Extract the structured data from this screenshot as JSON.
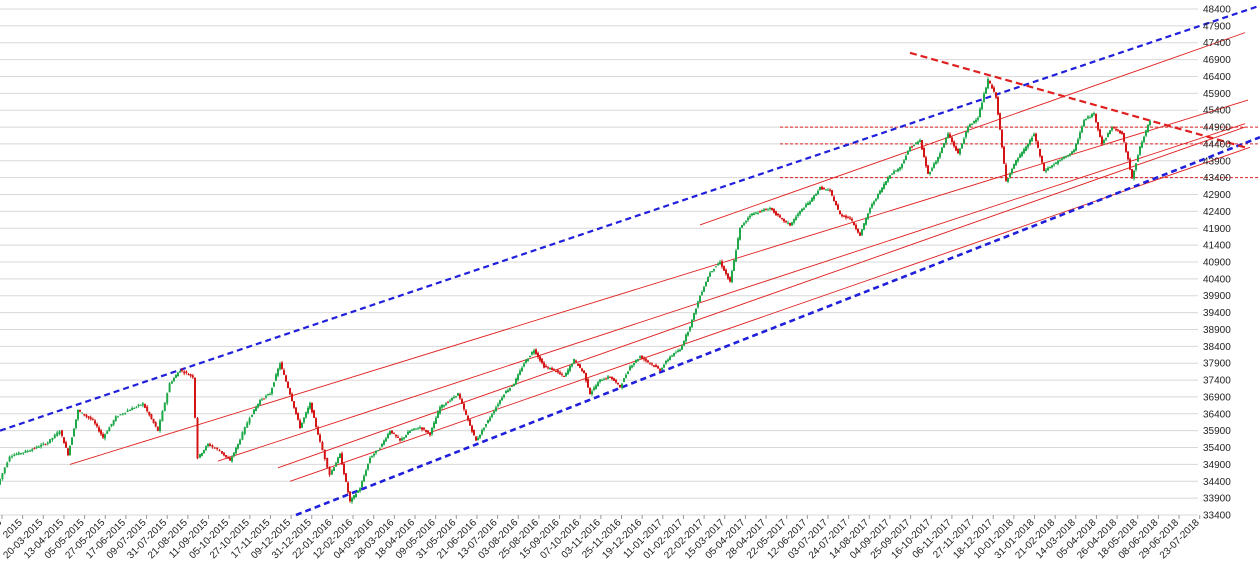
{
  "chart_data": {
    "type": "line",
    "title": "",
    "xlabel": "",
    "ylabel": "",
    "ylim": [
      33400,
      48400
    ],
    "grid": true,
    "y_ticks": [
      33400,
      33900,
      34400,
      34900,
      35400,
      35900,
      36400,
      36900,
      37400,
      37900,
      38400,
      38900,
      39400,
      39900,
      40400,
      40900,
      41400,
      41900,
      42400,
      42900,
      43400,
      43900,
      44400,
      44900,
      45400,
      45900,
      46400,
      46900,
      47400,
      47900,
      48400
    ],
    "x_tick_labels": [
      "2015",
      "2015",
      "20-03-2015",
      "13-04-2015",
      "05-05-2015",
      "27-05-2015",
      "17-06-2015",
      "09-07-2015",
      "31-07-2015",
      "21-08-2015",
      "11-09-2015",
      "05-10-2015",
      "27-10-2015",
      "17-11-2015",
      "09-12-2015",
      "31-12-2015",
      "22-01-2016",
      "12-02-2016",
      "04-03-2016",
      "28-03-2016",
      "18-04-2016",
      "09-05-2016",
      "31-05-2016",
      "21-06-2016",
      "13-07-2016",
      "03-08-2016",
      "25-08-2016",
      "15-09-2016",
      "07-10-2016",
      "03-11-2016",
      "25-11-2016",
      "19-12-2016",
      "11-01-2017",
      "01-02-2017",
      "22-02-2017",
      "15-03-2017",
      "05-04-2017",
      "28-04-2017",
      "22-05-2017",
      "12-06-2017",
      "03-07-2017",
      "24-07-2017",
      "14-08-2017",
      "04-09-2017",
      "25-09-2017",
      "16-10-2017",
      "06-11-2017",
      "27-11-2017",
      "18-12-2017",
      "10-01-2018",
      "31-01-2018",
      "21-02-2018",
      "14-03-2018",
      "05-04-2018",
      "26-04-2018",
      "18-05-2018",
      "08-06-2018",
      "29-06-2018",
      "23-07-2018"
    ],
    "candlestick_close_path": [
      [
        0,
        34300
      ],
      [
        12,
        35150
      ],
      [
        30,
        35300
      ],
      [
        50,
        35550
      ],
      [
        62,
        35900
      ],
      [
        70,
        35200
      ],
      [
        80,
        36500
      ],
      [
        95,
        36200
      ],
      [
        105,
        35700
      ],
      [
        118,
        36300
      ],
      [
        130,
        36500
      ],
      [
        145,
        36700
      ],
      [
        160,
        35900
      ],
      [
        172,
        37300
      ],
      [
        182,
        37700
      ],
      [
        195,
        37500
      ],
      [
        200,
        35100
      ],
      [
        210,
        35500
      ],
      [
        222,
        35300
      ],
      [
        232,
        35000
      ],
      [
        240,
        35500
      ],
      [
        252,
        36300
      ],
      [
        262,
        36800
      ],
      [
        272,
        37000
      ],
      [
        282,
        37900
      ],
      [
        292,
        37000
      ],
      [
        302,
        36000
      ],
      [
        312,
        36700
      ],
      [
        320,
        35800
      ],
      [
        332,
        34600
      ],
      [
        342,
        35200
      ],
      [
        352,
        33800
      ],
      [
        362,
        34200
      ],
      [
        372,
        35100
      ],
      [
        382,
        35400
      ],
      [
        392,
        35900
      ],
      [
        402,
        35600
      ],
      [
        412,
        35900
      ],
      [
        422,
        36000
      ],
      [
        432,
        35800
      ],
      [
        442,
        36600
      ],
      [
        452,
        36800
      ],
      [
        460,
        37000
      ],
      [
        470,
        36200
      ],
      [
        478,
        35600
      ],
      [
        486,
        36000
      ],
      [
        496,
        36500
      ],
      [
        506,
        37000
      ],
      [
        516,
        37300
      ],
      [
        526,
        37900
      ],
      [
        536,
        38300
      ],
      [
        546,
        37800
      ],
      [
        556,
        37700
      ],
      [
        566,
        37500
      ],
      [
        576,
        38000
      ],
      [
        586,
        37600
      ],
      [
        592,
        37000
      ],
      [
        602,
        37400
      ],
      [
        612,
        37500
      ],
      [
        622,
        37200
      ],
      [
        632,
        37800
      ],
      [
        642,
        38100
      ],
      [
        652,
        37900
      ],
      [
        662,
        37700
      ],
      [
        672,
        38100
      ],
      [
        682,
        38300
      ],
      [
        692,
        39000
      ],
      [
        702,
        39900
      ],
      [
        712,
        40600
      ],
      [
        722,
        40900
      ],
      [
        732,
        40300
      ],
      [
        742,
        41900
      ],
      [
        752,
        42300
      ],
      [
        762,
        42400
      ],
      [
        772,
        42500
      ],
      [
        782,
        42200
      ],
      [
        792,
        42000
      ],
      [
        802,
        42400
      ],
      [
        812,
        42700
      ],
      [
        822,
        43100
      ],
      [
        832,
        43000
      ],
      [
        842,
        42300
      ],
      [
        852,
        42200
      ],
      [
        862,
        41700
      ],
      [
        872,
        42500
      ],
      [
        882,
        43000
      ],
      [
        892,
        43500
      ],
      [
        902,
        43700
      ],
      [
        912,
        44300
      ],
      [
        922,
        44500
      ],
      [
        930,
        43500
      ],
      [
        940,
        44000
      ],
      [
        950,
        44700
      ],
      [
        960,
        44100
      ],
      [
        970,
        44900
      ],
      [
        980,
        45200
      ],
      [
        990,
        46300
      ],
      [
        998,
        45800
      ],
      [
        1008,
        43300
      ],
      [
        1018,
        43900
      ],
      [
        1028,
        44300
      ],
      [
        1036,
        44700
      ],
      [
        1046,
        43600
      ],
      [
        1056,
        43800
      ],
      [
        1066,
        44000
      ],
      [
        1076,
        44200
      ],
      [
        1086,
        45100
      ],
      [
        1096,
        45300
      ],
      [
        1104,
        44400
      ],
      [
        1114,
        44900
      ],
      [
        1124,
        44700
      ],
      [
        1134,
        43400
      ],
      [
        1142,
        44300
      ],
      [
        1152,
        45100
      ]
    ],
    "channels": {
      "blue_upper": {
        "from": [
          0,
          35900
        ],
        "to": [
          1260,
          48500
        ]
      },
      "blue_lower": {
        "from": [
          296,
          33400
        ],
        "to": [
          1260,
          44600
        ]
      },
      "red_resistance_down": {
        "from": [
          910,
          47100
        ],
        "to": [
          1245,
          44300
        ]
      },
      "red_parallels": [
        {
          "from": [
            70,
            34900
          ],
          "to": [
            1248,
            45700
          ]
        },
        {
          "from": [
            218,
            35000
          ],
          "to": [
            1245,
            45000
          ]
        },
        {
          "from": [
            278,
            34800
          ],
          "to": [
            1245,
            44900
          ]
        },
        {
          "from": [
            290,
            34400
          ],
          "to": [
            1250,
            44300
          ]
        },
        {
          "from": [
            700,
            42000
          ],
          "to": [
            1245,
            47700
          ]
        }
      ],
      "red_horizontal_dotted": [
        44900,
        44400,
        43400
      ]
    },
    "colors": {
      "up_candle": "#1fa84a",
      "down_candle": "#d41414",
      "channel_blue": "#1f1fdc",
      "channel_red": "#e02020",
      "grid": "#d8d8d8"
    }
  }
}
